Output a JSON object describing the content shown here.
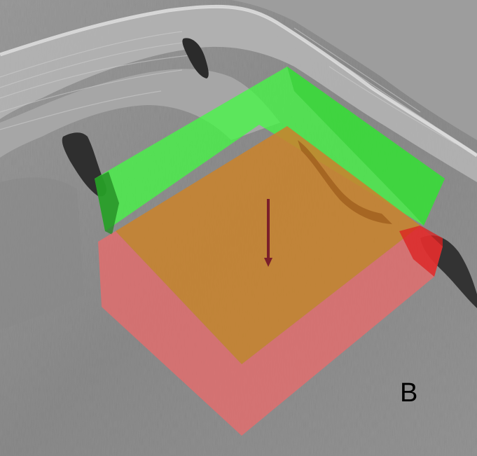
{
  "figure": {
    "panel_label": "B"
  },
  "colors": {
    "background": "#8c8c8c",
    "terrain_light": "#b9b9b9",
    "terrain_shadow": "#3a3a3a",
    "green_box": "#33ee33",
    "red_box": "#ee5555",
    "arrow": "#7a1f2a"
  }
}
